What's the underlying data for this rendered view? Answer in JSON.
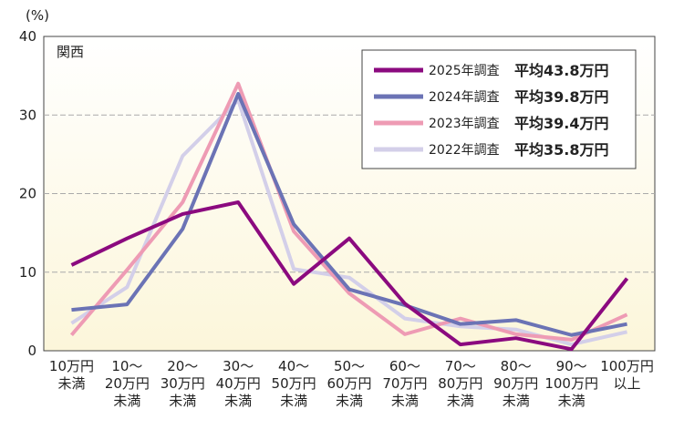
{
  "chart_data": {
    "type": "line",
    "y_label": "(%)",
    "region_label": "関西",
    "categories": [
      "10万円\n未満",
      "10～\n20万円\n未満",
      "20～\n30万円\n未満",
      "30～\n40万円\n未満",
      "40～\n50万円\n未満",
      "50～\n60万円\n未満",
      "60～\n70万円\n未満",
      "70～\n80万円\n未満",
      "80～\n90万円\n未満",
      "90～\n100万円\n未満",
      "100万円\n以上"
    ],
    "series": [
      {
        "name": "2025年調査",
        "average_label": "平均43.8万円",
        "color": "#8b0a7f",
        "values": [
          10.9,
          14.3,
          17.4,
          18.9,
          8.5,
          14.3,
          6.0,
          0.8,
          1.6,
          0.2,
          9.2
        ]
      },
      {
        "name": "2024年調査",
        "average_label": "平均39.8万円",
        "color": "#6b73b5",
        "values": [
          5.2,
          5.9,
          15.5,
          32.7,
          16.1,
          7.8,
          5.8,
          3.4,
          3.9,
          2.0,
          3.4
        ]
      },
      {
        "name": "2023年調査",
        "average_label": "平均39.4万円",
        "color": "#ee9bb4",
        "values": [
          2.0,
          10.3,
          18.9,
          34.0,
          15.2,
          7.3,
          2.1,
          4.1,
          2.1,
          1.4,
          4.6
        ]
      },
      {
        "name": "2022年調査",
        "average_label": "平均35.8万円",
        "color": "#d3cfe9",
        "values": [
          3.5,
          8.1,
          24.8,
          31.9,
          10.4,
          9.3,
          4.1,
          3.1,
          2.7,
          0.8,
          2.4
        ]
      }
    ],
    "ylim": [
      0,
      40
    ],
    "yticks": [
      0,
      10,
      20,
      30,
      40
    ],
    "grid": true
  }
}
